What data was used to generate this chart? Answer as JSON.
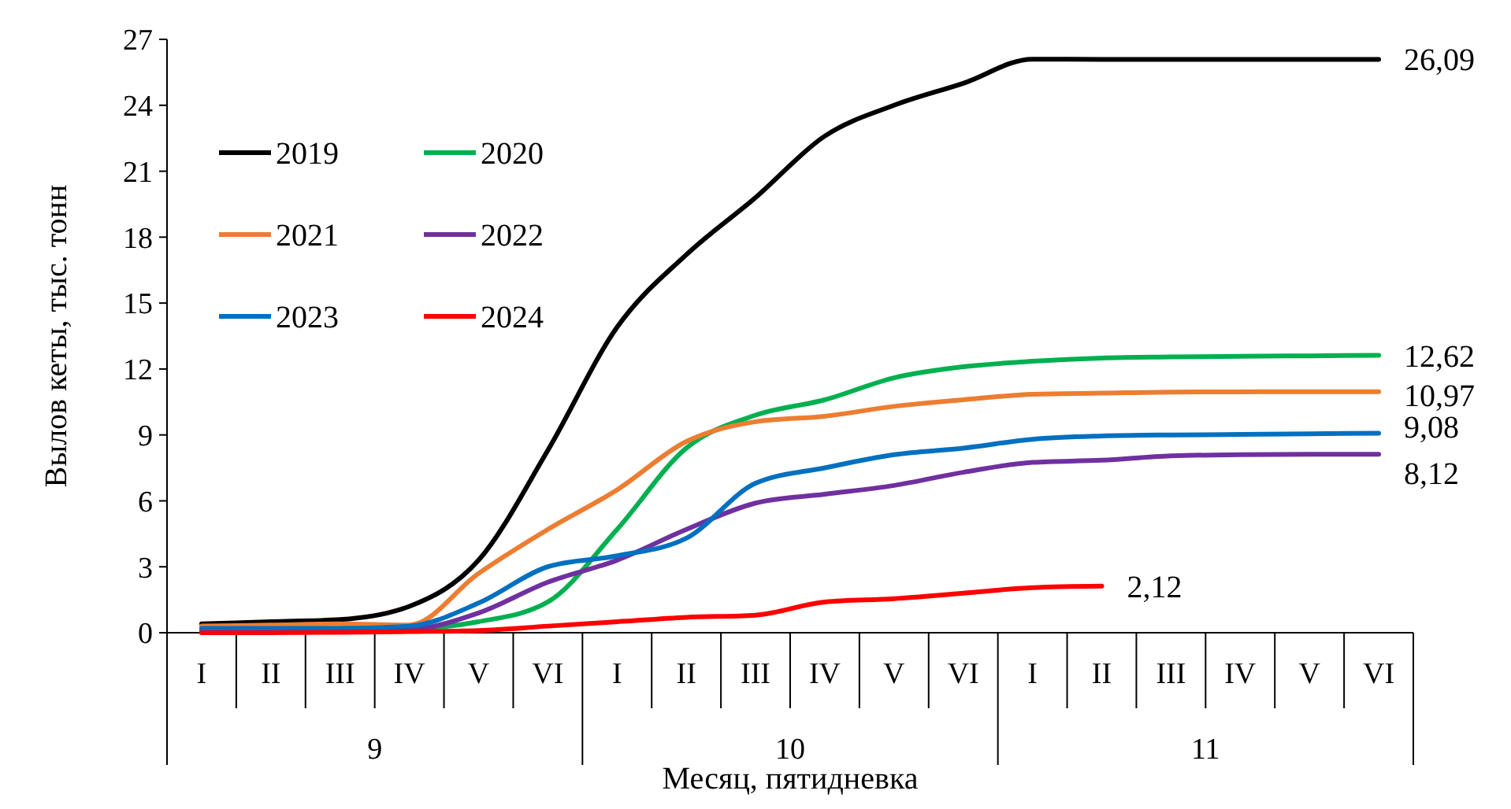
{
  "chart_data": {
    "type": "line",
    "xlabel": "Месяц, пятидневка",
    "ylabel": "Вылов кеты, тыс. тонн",
    "categories": [
      "I",
      "II",
      "III",
      "IV",
      "V",
      "VI",
      "I",
      "II",
      "III",
      "IV",
      "V",
      "VI",
      "I",
      "II",
      "III",
      "IV",
      "V",
      "VI"
    ],
    "annotations": [
      "9",
      "10",
      "11"
    ],
    "ylim": [
      0,
      27
    ],
    "yticks": [
      0,
      3,
      6,
      9,
      12,
      15,
      18,
      21,
      24,
      27
    ],
    "grid": false,
    "legend": "top left",
    "line_style": "solid",
    "marker": "none",
    "series": [
      {
        "name": "2019",
        "color": "#000000",
        "values": [
          0.4,
          0.5,
          0.6,
          1.2,
          3.3,
          8.3,
          13.9,
          17.2,
          19.8,
          22.6,
          24.0,
          25.0,
          26.1,
          26.09,
          26.09,
          26.09,
          26.09,
          26.09
        ],
        "value_labels": [
          null,
          null,
          null,
          null,
          null,
          null,
          null,
          null,
          null,
          null,
          null,
          null,
          null,
          null,
          null,
          null,
          null,
          "26,09"
        ]
      },
      {
        "name": "2020",
        "color": "#00b050",
        "values": [
          null,
          null,
          0.2,
          0.2,
          0.5,
          1.4,
          4.7,
          8.4,
          9.9,
          10.6,
          11.6,
          12.1,
          12.35,
          12.5,
          12.55,
          12.58,
          12.6,
          12.62
        ],
        "value_labels": [
          null,
          null,
          null,
          null,
          null,
          null,
          null,
          null,
          null,
          null,
          null,
          null,
          null,
          null,
          null,
          null,
          null,
          "12,62"
        ]
      },
      {
        "name": "2021",
        "color": "#ed7d31",
        "values": [
          0.3,
          0.35,
          0.4,
          0.35,
          2.7,
          4.7,
          6.5,
          8.7,
          9.6,
          9.85,
          10.3,
          10.6,
          10.85,
          10.9,
          10.95,
          10.96,
          10.97,
          10.97
        ],
        "value_labels": [
          null,
          null,
          null,
          null,
          null,
          null,
          null,
          null,
          null,
          null,
          null,
          null,
          null,
          null,
          null,
          null,
          null,
          "10,97"
        ]
      },
      {
        "name": "2022",
        "color": "#7030a0",
        "values": [
          0.1,
          0.1,
          0.1,
          0.15,
          0.9,
          2.3,
          3.3,
          4.7,
          5.9,
          6.3,
          6.7,
          7.3,
          7.75,
          7.85,
          8.05,
          8.1,
          8.12,
          8.12
        ],
        "value_labels": [
          null,
          null,
          null,
          null,
          null,
          null,
          null,
          null,
          null,
          null,
          null,
          null,
          null,
          null,
          null,
          null,
          null,
          "8,12"
        ]
      },
      {
        "name": "2023",
        "color": "#0070c0",
        "values": [
          0.2,
          0.2,
          0.2,
          0.3,
          1.35,
          3.0,
          3.5,
          4.3,
          6.8,
          7.5,
          8.1,
          8.4,
          8.8,
          8.95,
          9.0,
          9.02,
          9.05,
          9.08
        ],
        "value_labels": [
          null,
          null,
          null,
          null,
          null,
          null,
          null,
          null,
          null,
          null,
          null,
          null,
          null,
          null,
          null,
          null,
          null,
          "9,08"
        ]
      },
      {
        "name": "2024",
        "color": "#ff0000",
        "values": [
          0,
          0,
          0.02,
          0.05,
          0.1,
          0.3,
          0.5,
          0.7,
          0.8,
          1.4,
          1.55,
          1.8,
          2.05,
          2.12,
          null,
          null,
          null,
          null
        ],
        "value_labels": [
          null,
          null,
          null,
          null,
          null,
          null,
          null,
          null,
          null,
          null,
          null,
          null,
          null,
          "2,12",
          null,
          null,
          null,
          null
        ]
      }
    ]
  }
}
